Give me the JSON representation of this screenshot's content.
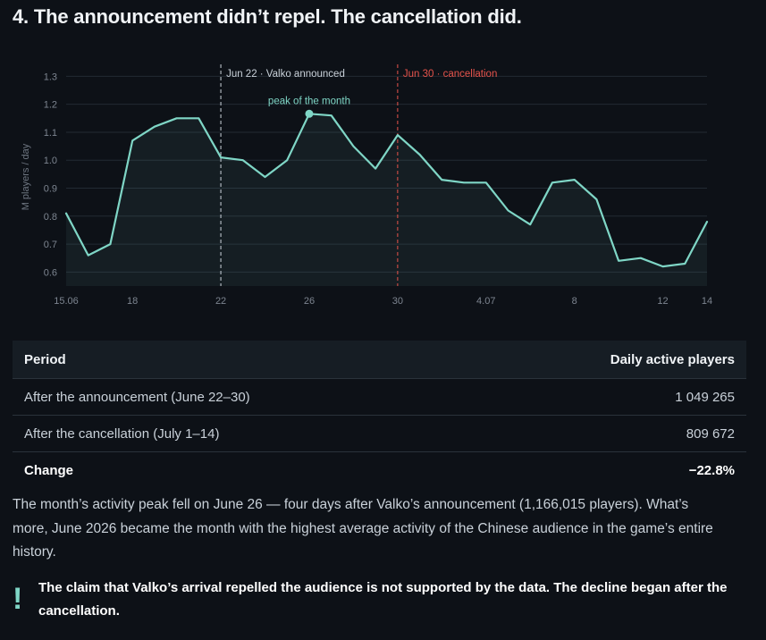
{
  "section": {
    "title": "4. The announcement didn’t repel. The cancellation did."
  },
  "chart_data": {
    "type": "line",
    "ylabel": "M players / day",
    "ylim": [
      0.55,
      1.33
    ],
    "yticks": [
      0.6,
      0.7,
      0.8,
      0.9,
      1.0,
      1.1,
      1.2,
      1.3
    ],
    "x_start": "2026-06-15",
    "x_end": "2026-07-14",
    "x_ticks": [
      {
        "date": "2026-06-15",
        "label": "15.06"
      },
      {
        "date": "2026-06-18",
        "label": "18"
      },
      {
        "date": "2026-06-22",
        "label": "22"
      },
      {
        "date": "2026-06-26",
        "label": "26"
      },
      {
        "date": "2026-06-30",
        "label": "30"
      },
      {
        "date": "2026-07-04",
        "label": "4.07"
      },
      {
        "date": "2026-07-08",
        "label": "8"
      },
      {
        "date": "2026-07-12",
        "label": "12"
      },
      {
        "date": "2026-07-14",
        "label": "14"
      }
    ],
    "grid": "horizontal",
    "series": [
      {
        "color": "#7fd6c6",
        "points": [
          {
            "x": "2026-06-15",
            "y": 0.81
          },
          {
            "x": "2026-06-16",
            "y": 0.66
          },
          {
            "x": "2026-06-17",
            "y": 0.7
          },
          {
            "x": "2026-06-18",
            "y": 1.07
          },
          {
            "x": "2026-06-19",
            "y": 1.12
          },
          {
            "x": "2026-06-20",
            "y": 1.15
          },
          {
            "x": "2026-06-21",
            "y": 1.15
          },
          {
            "x": "2026-06-22",
            "y": 1.01
          },
          {
            "x": "2026-06-23",
            "y": 1.0
          },
          {
            "x": "2026-06-24",
            "y": 0.94
          },
          {
            "x": "2026-06-25",
            "y": 1.0
          },
          {
            "x": "2026-06-26",
            "y": 1.166
          },
          {
            "x": "2026-06-27",
            "y": 1.16
          },
          {
            "x": "2026-06-28",
            "y": 1.05
          },
          {
            "x": "2026-06-29",
            "y": 0.97
          },
          {
            "x": "2026-06-30",
            "y": 1.09
          },
          {
            "x": "2026-07-01",
            "y": 1.02
          },
          {
            "x": "2026-07-02",
            "y": 0.93
          },
          {
            "x": "2026-07-03",
            "y": 0.92
          },
          {
            "x": "2026-07-04",
            "y": 0.92
          },
          {
            "x": "2026-07-05",
            "y": 0.82
          },
          {
            "x": "2026-07-06",
            "y": 0.77
          },
          {
            "x": "2026-07-07",
            "y": 0.92
          },
          {
            "x": "2026-07-08",
            "y": 0.93
          },
          {
            "x": "2026-07-09",
            "y": 0.86
          },
          {
            "x": "2026-07-10",
            "y": 0.64
          },
          {
            "x": "2026-07-11",
            "y": 0.65
          },
          {
            "x": "2026-07-12",
            "y": 0.62
          },
          {
            "x": "2026-07-13",
            "y": 0.63
          },
          {
            "x": "2026-07-14",
            "y": 0.78
          }
        ]
      }
    ],
    "annotations": [
      {
        "x": "2026-06-22",
        "label": "Jun 22 · Valko announced",
        "color": "#c9d1d9"
      },
      {
        "x": "2026-06-30",
        "label": "Jun 30 · cancellation",
        "color": "#e5534b"
      }
    ],
    "peak": {
      "x": "2026-06-26",
      "y": 1.166,
      "label": "peak of the month",
      "color": "#7fd6c6"
    }
  },
  "table": {
    "headers": [
      "Period",
      "Daily active players"
    ],
    "rows": [
      [
        "After the announcement (June 22–30)",
        "1 049 265"
      ],
      [
        "After the cancellation (July 1–14)",
        "809 672"
      ]
    ],
    "total": [
      "Change",
      "−22.8%"
    ]
  },
  "paragraph": "The month’s activity peak fell on June 26 — four days after Valko’s announcement (1,166,015 players). What’s more, June 2026 became the month with the highest average activity of the Chinese audience in the game’s entire history.",
  "callout": {
    "icon": "!",
    "icon_name": "exclamation-icon",
    "text": "The claim that Valko’s arrival repelled the audience is not supported by the data. The decline began after the cancellation."
  }
}
